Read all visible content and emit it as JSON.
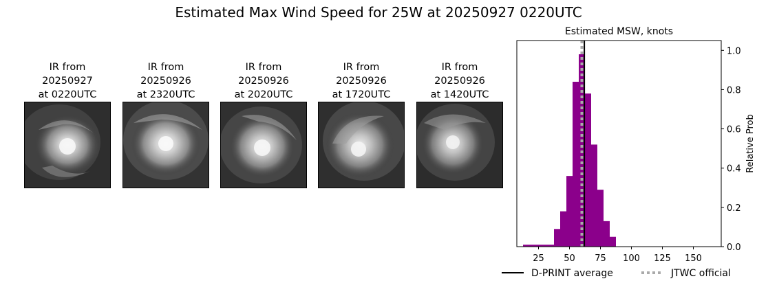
{
  "figure": {
    "title": "Estimated Max Wind Speed for 25W at 20250927 0220UTC"
  },
  "ir_panels": [
    {
      "line1": "IR from",
      "line2": "20250927",
      "line3": "at 0220UTC"
    },
    {
      "line1": "IR from",
      "line2": "20250926",
      "line3": "at 2320UTC"
    },
    {
      "line1": "IR from",
      "line2": "20250926",
      "line3": "at 2020UTC"
    },
    {
      "line1": "IR from",
      "line2": "20250926",
      "line3": "at 1720UTC"
    },
    {
      "line1": "IR from",
      "line2": "20250926",
      "line3": "at 1420UTC"
    }
  ],
  "chart_data": {
    "type": "bar",
    "title": "Estimated MSW, knots",
    "xlabel": "",
    "ylabel": "Relative Prob",
    "xlim": [
      7.5,
      172.5
    ],
    "ylim": [
      0,
      1.05
    ],
    "xticks": [
      25,
      50,
      75,
      100,
      125,
      150
    ],
    "yticks": [
      0.0,
      0.2,
      0.4,
      0.6,
      0.8,
      1.0
    ],
    "ytick_labels": [
      "0.0",
      "0.2",
      "0.4",
      "0.6",
      "0.8",
      "1.0"
    ],
    "yaxis_side": "right",
    "bin_width": 5,
    "bar_color": "#8b008b",
    "bins": [
      {
        "x": 15,
        "value": 0.01
      },
      {
        "x": 20,
        "value": 0.01
      },
      {
        "x": 25,
        "value": 0.01
      },
      {
        "x": 30,
        "value": 0.01
      },
      {
        "x": 35,
        "value": 0.01
      },
      {
        "x": 40,
        "value": 0.09
      },
      {
        "x": 45,
        "value": 0.18
      },
      {
        "x": 50,
        "value": 0.36
      },
      {
        "x": 55,
        "value": 0.84
      },
      {
        "x": 60,
        "value": 0.98
      },
      {
        "x": 65,
        "value": 0.78
      },
      {
        "x": 70,
        "value": 0.52
      },
      {
        "x": 75,
        "value": 0.29
      },
      {
        "x": 80,
        "value": 0.13
      },
      {
        "x": 85,
        "value": 0.05
      },
      {
        "x": 90,
        "value": 0.0
      },
      {
        "x": 95,
        "value": 0.0
      },
      {
        "x": 100,
        "value": 0.0
      },
      {
        "x": 105,
        "value": 0.0
      },
      {
        "x": 110,
        "value": 0.0
      },
      {
        "x": 115,
        "value": 0.0
      },
      {
        "x": 120,
        "value": 0.0
      },
      {
        "x": 125,
        "value": 0.0
      },
      {
        "x": 130,
        "value": 0.0
      },
      {
        "x": 135,
        "value": 0.0
      },
      {
        "x": 140,
        "value": 0.0
      },
      {
        "x": 145,
        "value": 0.0
      },
      {
        "x": 150,
        "value": 0.0
      },
      {
        "x": 155,
        "value": 0.0
      },
      {
        "x": 160,
        "value": 0.0
      },
      {
        "x": 165,
        "value": 0.0
      }
    ],
    "lines": [
      {
        "name": "D-PRINT average",
        "x": 62,
        "color": "#000000",
        "style": "solid"
      },
      {
        "name": "JTWC official",
        "x": 60,
        "color": "#aaaaaa",
        "style": "dotted"
      }
    ],
    "legend": {
      "placement": "bottom",
      "entries": [
        "D-PRINT average",
        "JTWC official"
      ]
    }
  }
}
